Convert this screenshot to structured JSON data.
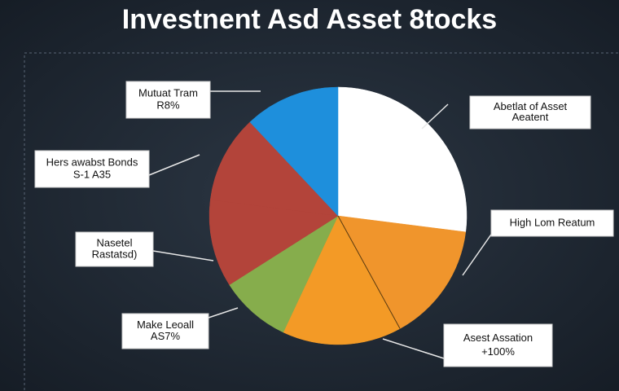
{
  "chart_data": {
    "type": "pie",
    "title": "Investnent Asd Asset 8tocks",
    "labels": [
      [
        "Abetlat of Asset",
        "Aeatent"
      ],
      [
        "High Lom Reatum"
      ],
      [
        "Asest Assation",
        "+100%"
      ],
      [
        "Make Leoall",
        "AS7%"
      ],
      [
        "Nasetel",
        "Rastatsd)"
      ],
      [
        "Hers awabst Bonds",
        "S-1 A35"
      ],
      [
        "Mutuat Tram",
        "R8%"
      ]
    ],
    "values": [
      27,
      15,
      15,
      9,
      11,
      11,
      12
    ],
    "colors": [
      "#ffffff",
      "#f0952c",
      "#f39a26",
      "#86ad4c",
      "#b3443a",
      "#b3443a",
      "#1e8fdc"
    ]
  }
}
